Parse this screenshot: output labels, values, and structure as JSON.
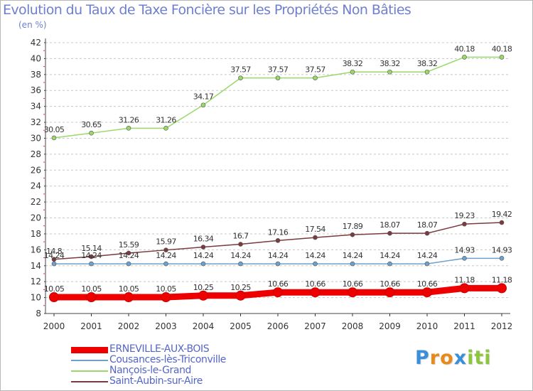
{
  "title": "Evolution du Taux de Taxe Foncière sur les Propriétés Non Bâties",
  "unit_label": "(en %)",
  "logo": {
    "text": "Proxiti",
    "letters": [
      {
        "ch": "P",
        "color": "#3a8fd8"
      },
      {
        "ch": "r",
        "color": "#e88a1a"
      },
      {
        "ch": "o",
        "color": "#e88a1a"
      },
      {
        "ch": "x",
        "color": "#3a8fd8"
      },
      {
        "ch": "i",
        "color": "#8cc63f"
      },
      {
        "ch": "t",
        "color": "#8cc63f"
      },
      {
        "ch": "i",
        "color": "#8cc63f"
      }
    ]
  },
  "chart_data": {
    "type": "line",
    "title": "Evolution du Taux de Taxe Foncière sur les Propriétés Non Bâties",
    "ylabel": "(en %)",
    "xlabel": "",
    "x": [
      "2000",
      "2001",
      "2002",
      "2003",
      "2004",
      "2005",
      "2006",
      "2007",
      "2008",
      "2009",
      "2010",
      "2011",
      "2012"
    ],
    "ylim": [
      8,
      42
    ],
    "yticks": [
      8,
      10,
      12,
      14,
      16,
      18,
      20,
      22,
      24,
      26,
      28,
      30,
      32,
      34,
      36,
      38,
      40,
      42
    ],
    "grid": "horizontal dashed",
    "legend_position": "bottom-left",
    "series": [
      {
        "name": "ERNEVILLE-AUX-BOIS",
        "color": "#ee0000",
        "values": [
          10.05,
          10.05,
          10.05,
          10.05,
          10.25,
          10.25,
          10.66,
          10.66,
          10.66,
          10.66,
          10.66,
          11.18,
          11.18
        ],
        "labels": [
          "10.05",
          "10.05",
          "10.05",
          "10.05",
          "10.25",
          "10.25",
          "10.66",
          "10.66",
          "10.66",
          "10.66",
          "10.66",
          "11.18",
          "11.18"
        ]
      },
      {
        "name": "Cousances-lès-Triconville",
        "color": "#6fa0cc",
        "values": [
          14.24,
          14.24,
          14.24,
          14.24,
          14.24,
          14.24,
          14.24,
          14.24,
          14.24,
          14.24,
          14.24,
          14.93,
          14.93
        ],
        "labels": [
          "14.24",
          "14.24",
          "14.24",
          "14.24",
          "14.24",
          "14.24",
          "14.24",
          "14.24",
          "14.24",
          "14.24",
          "14.24",
          "14.93",
          "14.93"
        ]
      },
      {
        "name": "Nançois-le-Grand",
        "color": "#9ad86a",
        "values": [
          30.05,
          30.65,
          31.26,
          31.26,
          34.17,
          37.57,
          37.57,
          37.57,
          38.32,
          38.32,
          38.32,
          40.18,
          40.18
        ],
        "labels": [
          "30.05",
          "30.65",
          "31.26",
          "31.26",
          "34.17",
          "37.57",
          "37.57",
          "37.57",
          "38.32",
          "38.32",
          "38.32",
          "40.18",
          "40.18"
        ]
      },
      {
        "name": "Saint-Aubin-sur-Aire",
        "color": "#7a3a3e",
        "values": [
          14.8,
          15.14,
          15.59,
          15.97,
          16.34,
          16.7,
          17.16,
          17.54,
          17.89,
          18.07,
          18.07,
          19.23,
          19.42
        ],
        "labels": [
          "14.8",
          "15.14",
          "15.59",
          "15.97",
          "16.34",
          "16.7",
          "17.16",
          "17.54",
          "17.89",
          "18.07",
          "18.07",
          "19.23",
          "19.42"
        ]
      }
    ]
  }
}
